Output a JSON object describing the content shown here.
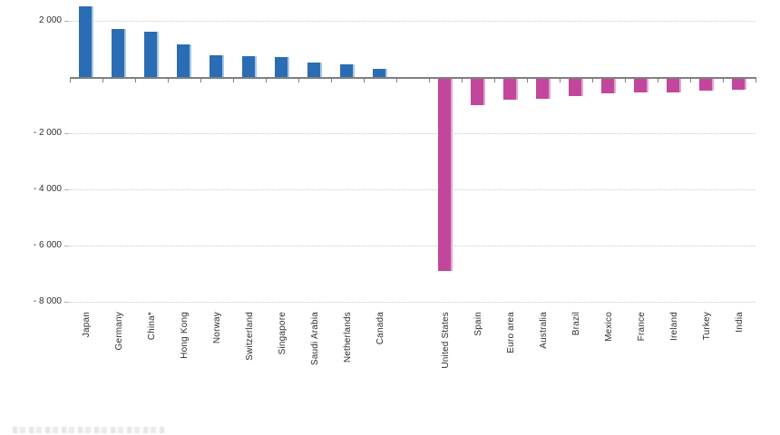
{
  "chart_data": {
    "type": "bar",
    "title": "",
    "xlabel": "",
    "ylabel": "",
    "legend": "none",
    "grid": "dotted-horizontal",
    "categories": [
      "Japan",
      "Germany",
      "China*",
      "Hong Kong",
      "Norway",
      "Switzerland",
      "Singapore",
      "Saudi Arabia",
      "Netherlands",
      "Canada",
      "United States",
      "Spain",
      "Euro area",
      "Australia",
      "Brazil",
      "Mexico",
      "France",
      "Ireland",
      "Turkey",
      "India"
    ],
    "values": [
      2500,
      1700,
      1600,
      1150,
      760,
      730,
      700,
      530,
      440,
      280,
      -6850,
      -950,
      -750,
      -710,
      -620,
      -520,
      -490,
      -470,
      -430,
      -390
    ],
    "group_gap_after_index": 9,
    "ylim": [
      -8000,
      2750
    ],
    "yticks": [
      2000,
      -2000,
      -4000,
      -6000,
      -8000
    ],
    "ytick_labels": [
      "2 000",
      "- 2 000",
      "- 4 000",
      "- 6 000",
      "- 8 000"
    ],
    "colors": {
      "positive_bar": "#2a6db4",
      "positive_bar_highlight": "#a6c8e8",
      "negative_bar": "#c2479c",
      "negative_bar_highlight": "#e3a6ce",
      "axis_line": "#7f7f7f",
      "gridline": "#c9c9c9",
      "tick_label": "#2e2e2e"
    }
  }
}
